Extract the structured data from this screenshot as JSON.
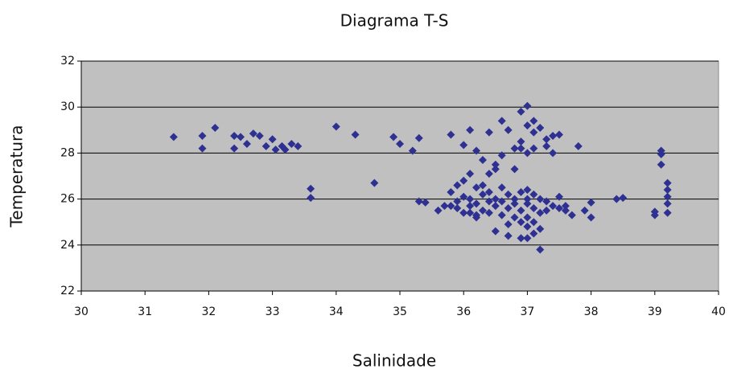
{
  "chart_data": {
    "type": "scatter",
    "title": "Diagrama T-S",
    "xlabel": "Salinidade",
    "ylabel": "Temperatura",
    "xlim": [
      30,
      40
    ],
    "xticks": [
      30,
      31,
      32,
      33,
      34,
      35,
      36,
      37,
      38,
      39,
      40
    ],
    "ylim": [
      22,
      32
    ],
    "yticks": [
      22,
      24,
      26,
      28,
      30,
      32
    ],
    "grid": true,
    "series": [
      {
        "color": "#2e3192",
        "x": [
          31.45,
          31.9,
          31.9,
          32.1,
          32.4,
          32.4,
          32.5,
          32.6,
          32.7,
          32.8,
          32.9,
          33.0,
          33.05,
          33.15,
          33.2,
          33.3,
          33.4,
          33.6,
          33.6,
          34.0,
          34.3,
          34.6,
          34.9,
          35.0,
          35.2,
          35.3,
          35.3,
          35.4,
          35.6,
          35.7,
          35.8,
          35.8,
          35.9,
          35.9,
          36.0,
          36.0,
          36.0,
          36.1,
          36.1,
          36.1,
          36.2,
          36.2,
          36.3,
          36.3,
          36.4,
          36.4,
          36.4,
          36.5,
          36.5,
          36.6,
          36.6,
          36.6,
          36.7,
          36.7,
          36.8,
          36.8,
          36.8,
          36.9,
          36.9,
          36.9,
          37.0,
          37.0,
          37.0,
          37.0,
          37.0,
          37.1,
          37.1,
          37.1,
          37.1,
          37.2,
          37.2,
          37.3,
          37.4,
          37.4,
          37.5,
          37.5,
          37.6,
          37.7,
          37.8,
          37.9,
          38.0,
          38.0,
          38.4,
          38.5,
          39.0,
          39.0,
          39.1,
          39.1,
          39.1,
          39.2,
          39.2,
          39.2,
          39.2,
          39.2,
          35.9,
          36.0,
          36.1,
          36.1,
          36.2,
          36.2,
          36.3,
          36.3,
          36.4,
          36.4,
          36.5,
          36.5,
          36.6,
          36.6,
          36.7,
          36.7,
          36.7,
          36.8,
          36.8,
          36.9,
          36.9,
          36.9,
          37.0,
          37.0,
          37.0,
          37.0,
          37.1,
          37.1,
          37.1,
          37.2,
          37.2,
          37.2,
          37.3,
          37.3,
          37.4,
          37.5,
          37.6,
          36.5,
          36.9,
          37.3,
          36.2,
          35.8
        ],
        "values": [
          28.7,
          28.75,
          28.2,
          29.1,
          28.75,
          28.2,
          28.7,
          28.4,
          28.85,
          28.75,
          28.3,
          28.6,
          28.15,
          28.3,
          28.15,
          28.4,
          28.3,
          26.45,
          26.05,
          29.15,
          28.8,
          26.7,
          28.7,
          28.4,
          28.1,
          28.65,
          25.9,
          25.85,
          25.5,
          25.7,
          28.8,
          26.3,
          26.6,
          25.6,
          26.8,
          25.4,
          28.35,
          29.0,
          27.1,
          26.0,
          28.1,
          25.3,
          26.2,
          27.7,
          28.9,
          27.1,
          25.9,
          27.3,
          24.6,
          29.4,
          27.9,
          26.5,
          29.0,
          24.4,
          28.2,
          26.0,
          27.3,
          29.8,
          28.5,
          24.3,
          30.05,
          29.2,
          28.0,
          26.4,
          24.3,
          29.4,
          28.9,
          28.2,
          24.5,
          29.1,
          23.8,
          28.3,
          28.75,
          28.0,
          28.8,
          26.1,
          25.5,
          25.3,
          28.3,
          25.5,
          25.85,
          25.2,
          26.0,
          26.05,
          25.45,
          25.3,
          28.1,
          27.95,
          27.5,
          26.7,
          26.4,
          26.1,
          25.8,
          25.4,
          25.9,
          26.1,
          25.7,
          25.4,
          26.5,
          25.8,
          25.5,
          26.6,
          25.4,
          26.3,
          25.7,
          26.0,
          25.3,
          25.9,
          25.6,
          26.2,
          24.9,
          25.2,
          25.8,
          26.3,
          25.5,
          25.0,
          25.8,
          25.2,
          24.8,
          26.0,
          25.6,
          26.2,
          25.0,
          25.4,
          24.7,
          26.0,
          25.5,
          25.9,
          25.7,
          25.6,
          25.7,
          27.5,
          28.2,
          28.6,
          25.2,
          25.7
        ]
      }
    ]
  }
}
